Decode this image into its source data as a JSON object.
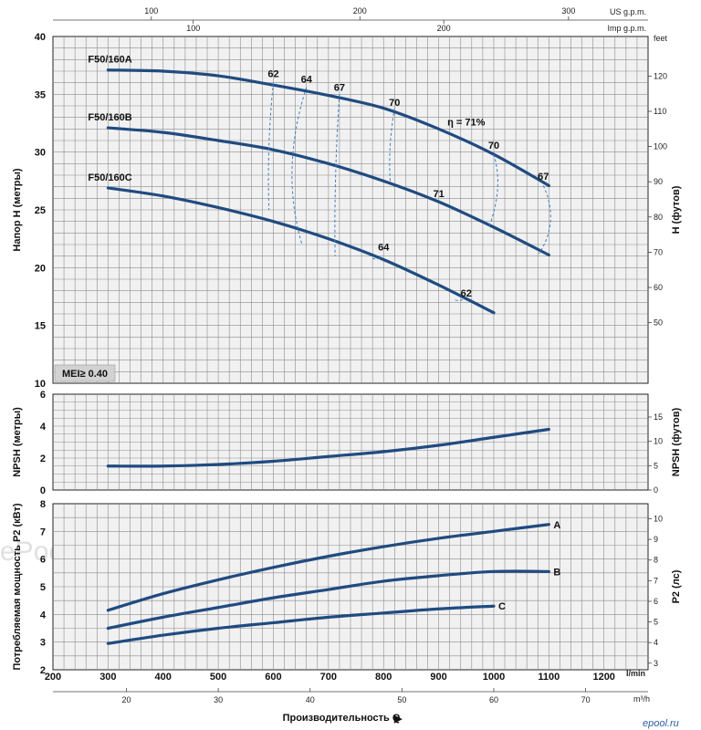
{
  "chart_data": [
    {
      "type": "line",
      "panel": "head",
      "ylabel": "Напор H (метры)",
      "ylabel_right": "H (футов)",
      "ylim": [
        10,
        40
      ],
      "yticks": [
        10,
        15,
        20,
        25,
        30,
        35,
        40
      ],
      "right_unit": "feet",
      "right_ticks": [
        50,
        60,
        70,
        80,
        90,
        100,
        110,
        120
      ],
      "top_scale_us": {
        "label": "US g.p.m.",
        "ticks": [
          100,
          200,
          300
        ]
      },
      "top_scale_imp": {
        "label": "Imp g.p.m.",
        "ticks": [
          100,
          200
        ]
      },
      "badge": "MEI≥ 0.40",
      "series": [
        {
          "name": "F50/160A",
          "x": [
            300,
            400,
            500,
            600,
            700,
            800,
            900,
            1000,
            1100
          ],
          "values": [
            37.1,
            37.0,
            36.6,
            35.8,
            34.9,
            33.8,
            32.0,
            29.8,
            27.1
          ]
        },
        {
          "name": "F50/160B",
          "x": [
            300,
            400,
            500,
            600,
            700,
            800,
            900,
            1000,
            1100
          ],
          "values": [
            32.1,
            31.7,
            31.0,
            30.2,
            29.0,
            27.5,
            25.7,
            23.5,
            21.1
          ]
        },
        {
          "name": "F50/160C",
          "x": [
            300,
            400,
            500,
            600,
            700,
            800,
            900,
            1000
          ],
          "values": [
            26.9,
            26.2,
            25.2,
            24.0,
            22.5,
            20.7,
            18.5,
            16.1
          ]
        }
      ],
      "efficiency_labels": [
        {
          "text": "62",
          "x": 600,
          "y": 36.5
        },
        {
          "text": "64",
          "x": 660,
          "y": 36.0
        },
        {
          "text": "67",
          "x": 720,
          "y": 35.3
        },
        {
          "text": "70",
          "x": 820,
          "y": 34.0
        },
        {
          "text": "η = 71%",
          "x": 950,
          "y": 32.3
        },
        {
          "text": "70",
          "x": 1000,
          "y": 30.3
        },
        {
          "text": "67",
          "x": 1090,
          "y": 27.6
        },
        {
          "text": "71",
          "x": 900,
          "y": 26.1
        },
        {
          "text": "64",
          "x": 800,
          "y": 21.5
        },
        {
          "text": "62",
          "x": 950,
          "y": 17.5
        }
      ]
    },
    {
      "type": "line",
      "panel": "npsh",
      "ylabel": "NPSH (метры)",
      "ylabel_right": "NPSH (футов)",
      "ylim": [
        0,
        6
      ],
      "yticks": [
        0,
        2,
        4,
        6
      ],
      "right_ticks": [
        0,
        5,
        10,
        15
      ],
      "series": [
        {
          "x": [
            300,
            400,
            500,
            600,
            700,
            800,
            900,
            1000,
            1100
          ],
          "values": [
            1.5,
            1.5,
            1.6,
            1.8,
            2.1,
            2.4,
            2.8,
            3.3,
            3.8
          ]
        }
      ]
    },
    {
      "type": "line",
      "panel": "power",
      "ylabel": "Потребляемая мощность P2 (кВт)",
      "ylabel_right": "P2 (лс)",
      "ylim": [
        2,
        8
      ],
      "yticks": [
        2,
        3,
        4,
        5,
        6,
        7,
        8
      ],
      "right_ticks": [
        3,
        4,
        5,
        6,
        7,
        8,
        9,
        10
      ],
      "series": [
        {
          "name": "A",
          "x": [
            300,
            400,
            500,
            600,
            700,
            800,
            900,
            1000,
            1100
          ],
          "values": [
            4.15,
            4.75,
            5.25,
            5.7,
            6.1,
            6.45,
            6.75,
            7.0,
            7.25
          ]
        },
        {
          "name": "B",
          "x": [
            300,
            400,
            500,
            600,
            700,
            800,
            900,
            1000,
            1100
          ],
          "values": [
            3.5,
            3.9,
            4.25,
            4.6,
            4.9,
            5.2,
            5.4,
            5.55,
            5.55
          ]
        },
        {
          "name": "C",
          "x": [
            300,
            400,
            500,
            600,
            700,
            800,
            900,
            1000
          ],
          "values": [
            2.95,
            3.25,
            3.5,
            3.7,
            3.9,
            4.05,
            4.2,
            4.3
          ]
        }
      ]
    }
  ],
  "x_axis": {
    "unit": "l/min",
    "ticks": [
      200,
      300,
      400,
      500,
      600,
      700,
      800,
      900,
      1000,
      1100,
      1200
    ],
    "xlim": [
      200,
      1280
    ],
    "secondary_unit": "m³/h",
    "secondary_ticks": [
      20,
      30,
      40,
      50,
      60,
      70
    ],
    "title": "Производительность Q"
  },
  "watermark": {
    "text": "ePool.ru",
    "logo": "epool.ru"
  }
}
